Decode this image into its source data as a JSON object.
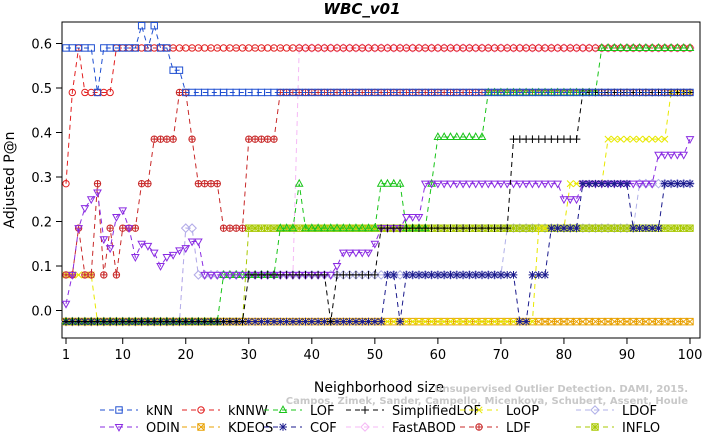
{
  "chart_data": {
    "type": "line",
    "title": "WBC_v01",
    "xlabel": "Neighborhood size",
    "ylabel": "Adjusted P@n",
    "xlim": [
      0,
      100
    ],
    "ylim": [
      -0.05,
      0.65
    ],
    "xticks": [
      1,
      10,
      20,
      30,
      40,
      50,
      60,
      70,
      80,
      90,
      100
    ],
    "yticks": [
      0.0,
      0.1,
      0.2,
      0.3,
      0.4,
      0.5,
      0.6
    ],
    "ytick_labels": [
      "0.0",
      "0.1",
      "0.2",
      "0.3",
      "0.4",
      "0.5",
      "0.6"
    ],
    "grid": false,
    "legend_position": "bottom",
    "watermark": [
      "Campos, Zimek, Sander, Campello, Micenkova, Schubert, Assent, Houle",
      "Unsupervised Outlier Detection. DAMI, 2015."
    ],
    "series": [
      {
        "name": "kNN",
        "color": "#1f4fd1",
        "marker": "square",
        "dash": "5,4",
        "points": [
          [
            1,
            0.59
          ],
          [
            5,
            0.59
          ],
          [
            6,
            0.49
          ],
          [
            7,
            0.59
          ],
          [
            12,
            0.59
          ],
          [
            13,
            0.64
          ],
          [
            14,
            0.59
          ],
          [
            15,
            0.64
          ],
          [
            16,
            0.59
          ],
          [
            18,
            0.54
          ],
          [
            19,
            0.54
          ],
          [
            20,
            0.49
          ],
          [
            100,
            0.49
          ]
        ]
      },
      {
        "name": "kNNW",
        "color": "#e21f1f",
        "marker": "circle",
        "dash": "5,4",
        "points": [
          [
            1,
            0.285
          ],
          [
            2,
            0.49
          ],
          [
            3,
            0.59
          ],
          [
            4,
            0.49
          ],
          [
            8,
            0.49
          ],
          [
            9,
            0.59
          ],
          [
            39,
            0.59
          ],
          [
            40,
            0.59
          ],
          [
            100,
            0.59
          ]
        ]
      },
      {
        "name": "LOF",
        "color": "#18c418",
        "marker": "triangle-up",
        "dash": "5,4",
        "points": [
          [
            1,
            -0.025
          ],
          [
            25,
            -0.025
          ],
          [
            26,
            0.08
          ],
          [
            34,
            0.08
          ],
          [
            35,
            0.185
          ],
          [
            38,
            0.285
          ],
          [
            39,
            0.185
          ],
          [
            50,
            0.185
          ],
          [
            51,
            0.285
          ],
          [
            54,
            0.285
          ],
          [
            55,
            0.185
          ],
          [
            58,
            0.185
          ],
          [
            59,
            0.285
          ],
          [
            60,
            0.39
          ],
          [
            67,
            0.39
          ],
          [
            68,
            0.49
          ],
          [
            85,
            0.49
          ],
          [
            86,
            0.59
          ],
          [
            100,
            0.59
          ]
        ]
      },
      {
        "name": "SimplifiedLOF",
        "color": "#000000",
        "marker": "plus",
        "dash": "5,4",
        "points": [
          [
            1,
            -0.025
          ],
          [
            29,
            -0.025
          ],
          [
            30,
            0.08
          ],
          [
            42,
            0.08
          ],
          [
            43,
            -0.025
          ],
          [
            44,
            0.08
          ],
          [
            50,
            0.08
          ],
          [
            51,
            0.185
          ],
          [
            71,
            0.185
          ],
          [
            72,
            0.385
          ],
          [
            82,
            0.385
          ],
          [
            83,
            0.49
          ],
          [
            100,
            0.49
          ]
        ]
      },
      {
        "name": "LoOP",
        "color": "#e8e800",
        "marker": "cross",
        "dash": "5,4",
        "points": [
          [
            1,
            0.08
          ],
          [
            5,
            0.08
          ],
          [
            6,
            -0.025
          ],
          [
            75,
            -0.025
          ],
          [
            76,
            0.185
          ],
          [
            80,
            0.185
          ],
          [
            81,
            0.285
          ],
          [
            86,
            0.285
          ],
          [
            87,
            0.385
          ],
          [
            96,
            0.385
          ],
          [
            97,
            0.49
          ],
          [
            100,
            0.49
          ]
        ]
      },
      {
        "name": "LDOF",
        "color": "#b0b0e8",
        "marker": "diamond",
        "dash": "5,4",
        "points": [
          [
            1,
            -0.025
          ],
          [
            19,
            -0.025
          ],
          [
            20,
            0.185
          ],
          [
            21,
            0.185
          ],
          [
            22,
            0.08
          ],
          [
            70,
            0.08
          ],
          [
            71,
            0.185
          ],
          [
            91,
            0.185
          ],
          [
            92,
            0.285
          ],
          [
            100,
            0.285
          ]
        ]
      },
      {
        "name": "ODIN",
        "color": "#8a2be2",
        "marker": "triangle-down",
        "dash": "5,4",
        "points": [
          [
            1,
            0.015
          ],
          [
            2,
            0.08
          ],
          [
            3,
            0.185
          ],
          [
            4,
            0.23
          ],
          [
            5,
            0.25
          ],
          [
            6,
            0.265
          ],
          [
            7,
            0.16
          ],
          [
            8,
            0.14
          ],
          [
            9,
            0.21
          ],
          [
            10,
            0.225
          ],
          [
            11,
            0.185
          ],
          [
            12,
            0.12
          ],
          [
            13,
            0.15
          ],
          [
            14,
            0.145
          ],
          [
            15,
            0.13
          ],
          [
            16,
            0.1
          ],
          [
            17,
            0.12
          ],
          [
            18,
            0.125
          ],
          [
            19,
            0.135
          ],
          [
            20,
            0.14
          ],
          [
            21,
            0.155
          ],
          [
            22,
            0.155
          ],
          [
            23,
            0.08
          ],
          [
            43,
            0.08
          ],
          [
            44,
            0.1
          ],
          [
            45,
            0.13
          ],
          [
            50,
            0.15
          ],
          [
            51,
            0.185
          ],
          [
            55,
            0.21
          ],
          [
            57,
            0.21
          ],
          [
            58,
            0.285
          ],
          [
            79,
            0.285
          ],
          [
            80,
            0.25
          ],
          [
            82,
            0.25
          ],
          [
            83,
            0.285
          ],
          [
            94,
            0.285
          ],
          [
            95,
            0.35
          ],
          [
            99,
            0.35
          ],
          [
            100,
            0.385
          ]
        ]
      },
      {
        "name": "COF",
        "color": "#1a1a8c",
        "marker": "asterisk",
        "dash": "5,4",
        "points": [
          [
            1,
            -0.025
          ],
          [
            51,
            -0.025
          ],
          [
            52,
            0.08
          ],
          [
            53,
            0.08
          ],
          [
            54,
            -0.025
          ],
          [
            55,
            0.08
          ],
          [
            60,
            0.08
          ],
          [
            61,
            0.08
          ],
          [
            66,
            0.08
          ],
          [
            67,
            0.08
          ],
          [
            72,
            0.08
          ],
          [
            73,
            -0.025
          ],
          [
            75,
            0.08
          ],
          [
            77,
            0.08
          ],
          [
            78,
            0.185
          ],
          [
            82,
            0.185
          ],
          [
            83,
            0.285
          ],
          [
            90,
            0.285
          ],
          [
            91,
            0.185
          ],
          [
            95,
            0.185
          ],
          [
            96,
            0.285
          ],
          [
            100,
            0.285
          ]
        ]
      },
      {
        "name": "FastABOD",
        "color": "#f5b8f5",
        "marker": "diamond",
        "dash": "5,4",
        "points": [
          [
            1,
            -0.025
          ],
          [
            19,
            -0.025
          ],
          [
            20,
            0.185
          ],
          [
            21,
            0.185
          ],
          [
            22,
            0.08
          ],
          [
            37,
            0.08
          ],
          [
            38,
            0.59
          ],
          [
            100,
            0.59
          ]
        ]
      },
      {
        "name": "KDEOS",
        "color": "#e8a000",
        "marker": "square-cross",
        "dash": "5,4",
        "points": [
          [
            1,
            -0.025
          ],
          [
            100,
            -0.025
          ]
        ]
      },
      {
        "name": "LDF",
        "color": "#c82828",
        "marker": "circle-plus",
        "dash": "5,4",
        "points": [
          [
            1,
            0.08
          ],
          [
            2,
            0.08
          ],
          [
            3,
            0.185
          ],
          [
            4,
            0.08
          ],
          [
            5,
            0.08
          ],
          [
            6,
            0.285
          ],
          [
            7,
            0.08
          ],
          [
            8,
            0.185
          ],
          [
            9,
            0.08
          ],
          [
            10,
            0.185
          ],
          [
            11,
            0.185
          ],
          [
            12,
            0.185
          ],
          [
            13,
            0.285
          ],
          [
            14,
            0.285
          ],
          [
            15,
            0.385
          ],
          [
            18,
            0.385
          ],
          [
            19,
            0.49
          ],
          [
            20,
            0.49
          ],
          [
            21,
            0.385
          ],
          [
            22,
            0.285
          ],
          [
            25,
            0.285
          ],
          [
            26,
            0.185
          ],
          [
            29,
            0.185
          ],
          [
            30,
            0.385
          ],
          [
            34,
            0.385
          ],
          [
            35,
            0.49
          ],
          [
            100,
            0.49
          ]
        ]
      },
      {
        "name": "INFLO",
        "color": "#a8c800",
        "marker": "square-star",
        "dash": "5,4",
        "points": [
          [
            1,
            -0.025
          ],
          [
            29,
            -0.025
          ],
          [
            30,
            0.185
          ],
          [
            100,
            0.185
          ]
        ]
      }
    ]
  }
}
